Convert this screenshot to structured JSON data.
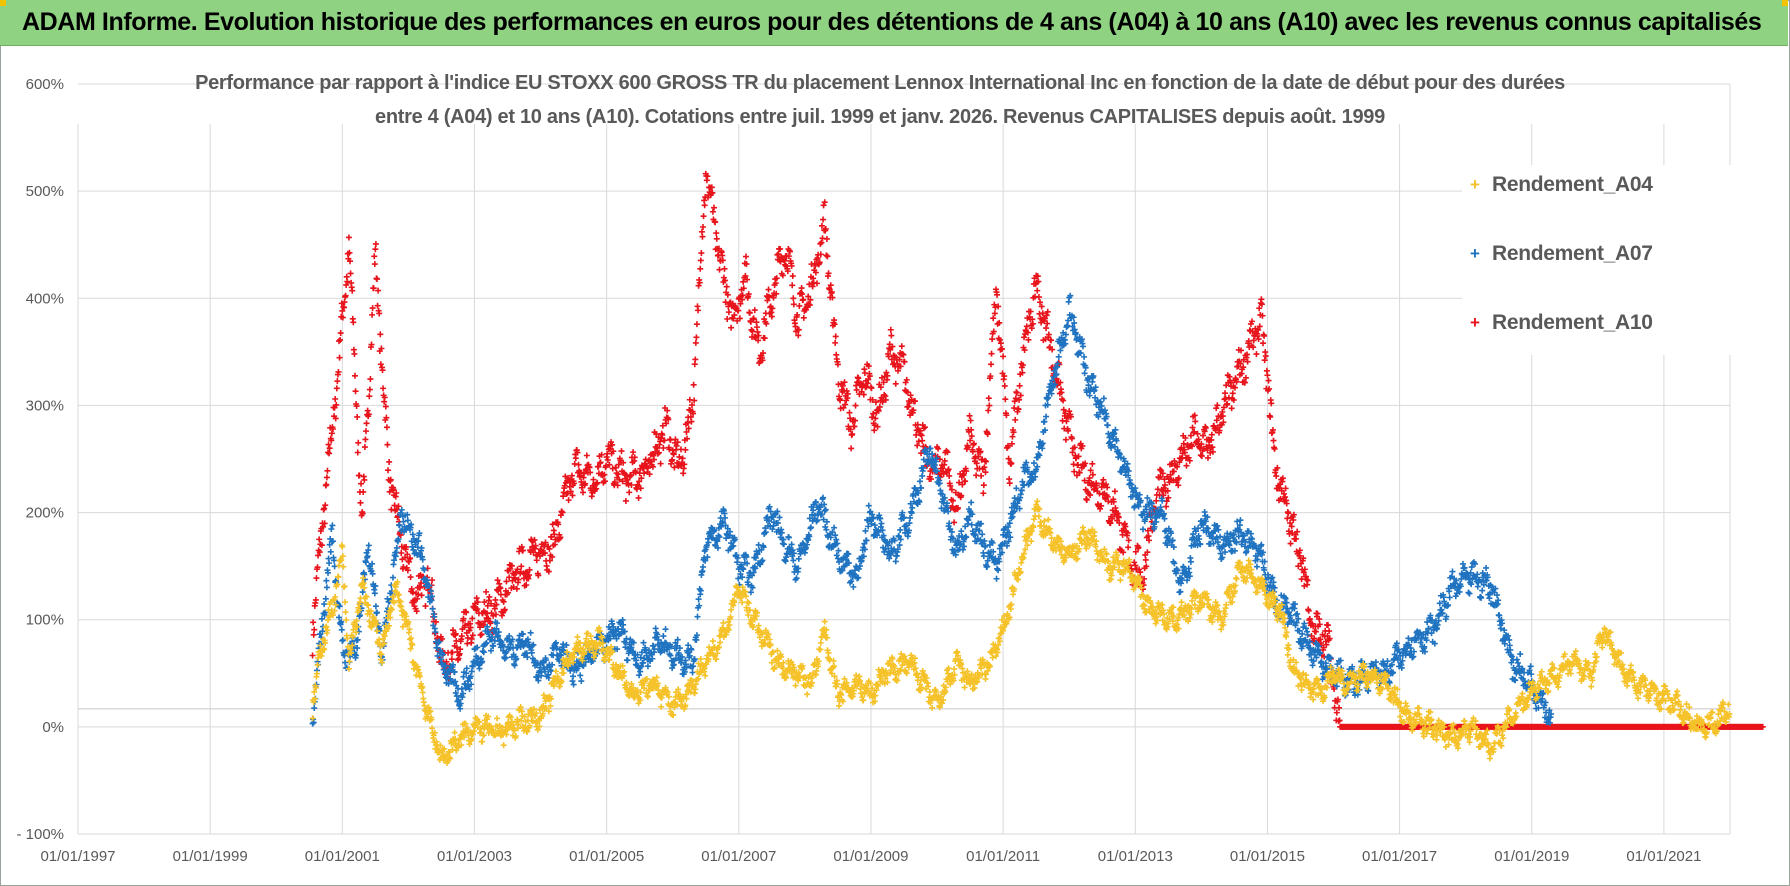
{
  "banner": {
    "title": "ADAM Informe. Evolution historique des performances en euros pour des détentions de 4 ans (A04) à 10 ans (A10) avec les revenus connus capitalisés"
  },
  "chart_data": {
    "type": "scatter",
    "title_line1": "Performance par rapport à l'indice EU STOXX 600 GROSS TR  du placement Lennox International Inc en fonction de la date de début pour des durées",
    "title_line2": "entre 4 (A04) et 10 ans (A10). Cotations entre juil. 1999 et janv. 2026. Revenus CAPITALISES depuis août. 1999",
    "xlabel": "",
    "ylabel": "",
    "x_tick_labels": [
      "01/01/1997",
      "01/01/1999",
      "01/01/2001",
      "01/01/2003",
      "01/01/2005",
      "01/01/2007",
      "01/01/2009",
      "01/01/2011",
      "01/01/2013",
      "01/01/2015",
      "01/01/2017",
      "01/01/2019",
      "01/01/2021"
    ],
    "xlim": [
      1997.0,
      2022.0
    ],
    "y_tick_labels": [
      "600%",
      "500%",
      "400%",
      "300%",
      "200%",
      "100%",
      "0%",
      "- 100%"
    ],
    "ylim": [
      -100,
      600
    ],
    "grid": true,
    "legend_position": "top-right",
    "marker": "+",
    "series": [
      {
        "name": "Rendement_A04",
        "color": "#f5c22a",
        "x": [
          2000.55,
          2000.7,
          2000.85,
          2001.0,
          2001.1,
          2001.3,
          2001.6,
          2001.8,
          2001.95,
          2002.3,
          2002.5,
          2002.8,
          2003.0,
          2003.4,
          2003.7,
          2004.0,
          2004.3,
          2004.5,
          2004.9,
          2005.1,
          2005.4,
          2005.7,
          2006.0,
          2006.2,
          2006.5,
          2006.8,
          2007.0,
          2007.3,
          2007.6,
          2007.9,
          2008.1,
          2008.3,
          2008.5,
          2008.8,
          2009.0,
          2009.2,
          2009.6,
          2009.8,
          2010.0,
          2010.3,
          2010.5,
          2010.8,
          2011.0,
          2011.3,
          2011.5,
          2011.8,
          2012.0,
          2012.3,
          2012.6,
          2012.9,
          2013.2,
          2013.6,
          2014.0,
          2014.3,
          2014.6,
          2014.8,
          2015.0,
          2015.2,
          2015.4,
          2015.6,
          2015.8,
          2016.0,
          2016.2,
          2016.5,
          2016.8,
          2017.1,
          2017.5,
          2017.8,
          2018.1,
          2018.4,
          2018.8,
          2019.1,
          2019.4,
          2019.6,
          2019.9,
          2020.1,
          2020.4,
          2020.6,
          2020.9,
          2021.2,
          2021.5,
          2021.8,
          2022.0
        ],
        "values": [
          20,
          80,
          110,
          160,
          60,
          130,
          70,
          130,
          100,
          10,
          -30,
          -10,
          0,
          -5,
          5,
          10,
          50,
          70,
          80,
          60,
          30,
          40,
          20,
          30,
          60,
          90,
          130,
          90,
          60,
          50,
          40,
          90,
          30,
          40,
          30,
          50,
          60,
          40,
          20,
          60,
          40,
          60,
          90,
          160,
          200,
          170,
          160,
          180,
          150,
          150,
          110,
          100,
          120,
          100,
          150,
          140,
          120,
          110,
          50,
          40,
          30,
          50,
          40,
          50,
          40,
          10,
          0,
          -10,
          0,
          -20,
          20,
          40,
          50,
          60,
          50,
          90,
          50,
          40,
          30,
          20,
          0,
          5,
          20
        ]
      },
      {
        "name": "Rendement_A07",
        "color": "#1f73c0",
        "x": [
          2000.55,
          2000.7,
          2000.85,
          2001.0,
          2001.2,
          2001.4,
          2001.6,
          2001.9,
          2002.2,
          2002.5,
          2002.8,
          2003.0,
          2003.3,
          2003.5,
          2003.8,
          2004.0,
          2004.3,
          2004.5,
          2004.8,
          2005.0,
          2005.2,
          2005.5,
          2005.8,
          2006.0,
          2006.3,
          2006.5,
          2006.8,
          2007.0,
          2007.2,
          2007.5,
          2007.7,
          2007.9,
          2008.2,
          2008.5,
          2008.8,
          2009.0,
          2009.3,
          2009.6,
          2009.9,
          2010.1,
          2010.3,
          2010.5,
          2010.7,
          2010.9,
          2011.1,
          2011.3,
          2011.5,
          2011.7,
          2012.0,
          2012.3,
          2012.6,
          2012.9,
          2013.1,
          2013.4,
          2013.7,
          2014.0,
          2014.3,
          2014.6,
          2014.9,
          2015.1,
          2015.4,
          2015.7,
          2016.0,
          2016.3,
          2016.5,
          2016.8,
          2017.2,
          2017.5,
          2017.8,
          2018.1,
          2018.4,
          2018.7,
          2019.0,
          2019.3
        ],
        "values": [
          0,
          100,
          180,
          70,
          70,
          170,
          70,
          200,
          160,
          60,
          30,
          60,
          90,
          70,
          80,
          50,
          70,
          50,
          70,
          80,
          90,
          60,
          80,
          70,
          60,
          170,
          190,
          150,
          140,
          200,
          170,
          150,
          210,
          160,
          140,
          200,
          160,
          200,
          260,
          210,
          160,
          200,
          170,
          150,
          190,
          230,
          240,
          310,
          390,
          320,
          280,
          230,
          200,
          200,
          130,
          190,
          170,
          180,
          160,
          120,
          100,
          70,
          50,
          40,
          50,
          50,
          80,
          90,
          130,
          140,
          130,
          60,
          40,
          10
        ]
      },
      {
        "name": "Rendement_A10",
        "color": "#e8141c",
        "x": [
          2000.55,
          2000.7,
          2000.9,
          2001.1,
          2001.3,
          2001.5,
          2001.7,
          2001.9,
          2002.1,
          2002.3,
          2002.5,
          2002.7,
          2003.0,
          2003.3,
          2003.6,
          2003.9,
          2004.2,
          2004.5,
          2004.8,
          2005.0,
          2005.3,
          2005.6,
          2005.9,
          2006.1,
          2006.3,
          2006.5,
          2006.7,
          2006.9,
          2007.1,
          2007.3,
          2007.5,
          2007.7,
          2007.9,
          2008.1,
          2008.3,
          2008.5,
          2008.7,
          2008.9,
          2009.1,
          2009.3,
          2009.5,
          2009.7,
          2009.9,
          2010.1,
          2010.3,
          2010.5,
          2010.7,
          2010.9,
          2011.1,
          2011.3,
          2011.5,
          2011.7,
          2011.9,
          2012.1,
          2012.3,
          2012.5,
          2012.7,
          2012.9,
          2013.1,
          2013.3,
          2013.5,
          2013.7,
          2013.9,
          2014.1,
          2014.3,
          2014.5,
          2014.7,
          2014.9,
          2015.0,
          2015.1,
          2015.3,
          2015.5,
          2015.7,
          2015.9,
          2016.1
        ],
        "values": [
          90,
          190,
          310,
          450,
          190,
          440,
          240,
          170,
          120,
          140,
          60,
          70,
          100,
          110,
          140,
          160,
          170,
          240,
          230,
          250,
          230,
          240,
          280,
          240,
          300,
          520,
          440,
          380,
          420,
          350,
          400,
          450,
          380,
          410,
          470,
          330,
          280,
          330,
          290,
          350,
          330,
          280,
          240,
          250,
          200,
          270,
          230,
          410,
          240,
          350,
          410,
          360,
          300,
          250,
          230,
          220,
          200,
          160,
          140,
          210,
          230,
          250,
          270,
          260,
          290,
          320,
          350,
          380,
          330,
          250,
          200,
          160,
          90,
          80,
          0
        ]
      }
    ],
    "zero_line": {
      "start": 2016.1,
      "end": 2022.5,
      "value": 0,
      "color": "#e8141c"
    }
  }
}
